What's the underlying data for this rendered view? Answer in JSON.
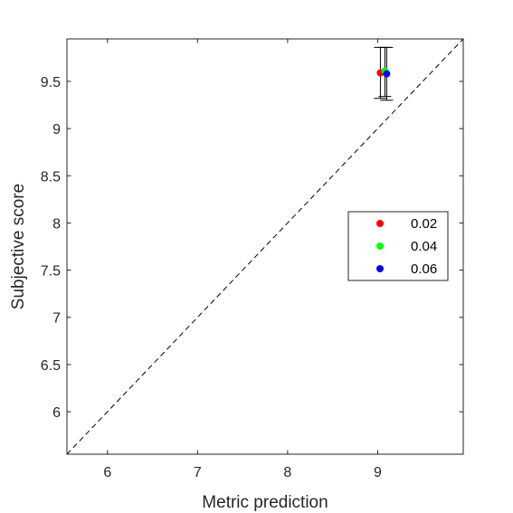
{
  "chart_data": {
    "type": "scatter",
    "xlabel": "Metric prediction",
    "ylabel": "Subjective score",
    "xlim": [
      5.55,
      9.95
    ],
    "ylim": [
      5.55,
      9.95
    ],
    "x_ticks": [
      6,
      7,
      8,
      9
    ],
    "y_ticks": [
      6,
      6.5,
      7,
      7.5,
      8,
      8.5,
      9,
      9.5
    ],
    "x_tick_labels": [
      "6",
      "7",
      "8",
      "9"
    ],
    "y_tick_labels": [
      "6",
      "6.5",
      "7",
      "7.5",
      "8",
      "8.5",
      "9",
      "9.5"
    ],
    "diagonal": true,
    "grid": false,
    "legend_position": "right",
    "series": [
      {
        "name": "0.02",
        "color": "#ff0000",
        "x": 9.03,
        "y": 9.59,
        "err_low": 9.32,
        "err_high": 9.86
      },
      {
        "name": "0.04",
        "color": "#00ff00",
        "x": 9.08,
        "y": 9.61,
        "err_low": 9.34,
        "err_high": 9.86
      },
      {
        "name": "0.06",
        "color": "#0000ff",
        "x": 9.1,
        "y": 9.58,
        "err_low": 9.3,
        "err_high": 9.86
      }
    ]
  }
}
